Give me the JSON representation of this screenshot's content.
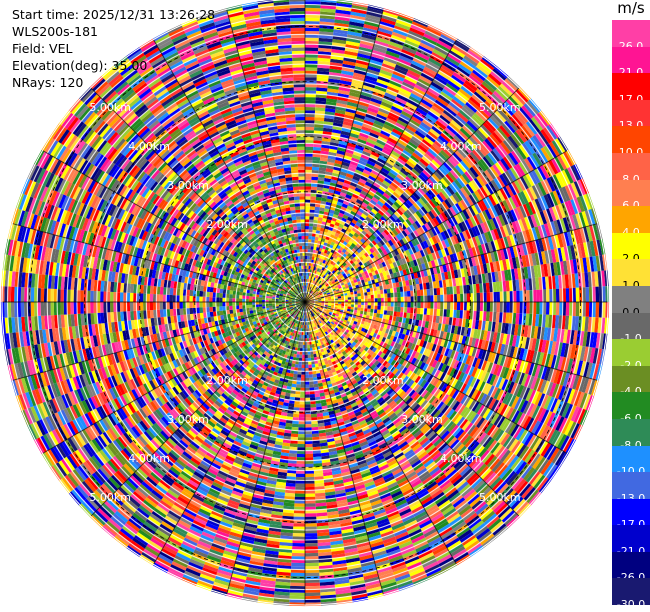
{
  "info": {
    "start_time": "Start time: 2025/12/31 13:26:28",
    "site": "WLS200s-181",
    "field": "Field: VEL",
    "elevation": "Elevation(deg): 35.00",
    "nrays": "NRays: 120"
  },
  "colorbar": {
    "unit": "m/s",
    "levels": [
      {
        "label": "26.0",
        "color": "#ff3fa6"
      },
      {
        "label": "21.0",
        "color": "#ff1493"
      },
      {
        "label": "17.0",
        "color": "#ff0000"
      },
      {
        "label": "13.0",
        "color": "#ff3333"
      },
      {
        "label": "10.0",
        "color": "#ff4500"
      },
      {
        "label": "8.0",
        "color": "#ff6347"
      },
      {
        "label": "6.0",
        "color": "#ff7f50"
      },
      {
        "label": "4.0",
        "color": "#ffa500"
      },
      {
        "label": "2.0",
        "color": "#ffff00"
      },
      {
        "label": "1.0",
        "color": "#ffe135"
      },
      {
        "label": "0.0",
        "color": "#808080"
      },
      {
        "label": "-1.0",
        "color": "#696969"
      },
      {
        "label": "-2.0",
        "color": "#9acd32"
      },
      {
        "label": "-4.0",
        "color": "#6b8e23"
      },
      {
        "label": "-6.0",
        "color": "#228b22"
      },
      {
        "label": "-8.0",
        "color": "#2e8b57"
      },
      {
        "label": "-10.0",
        "color": "#1e90ff"
      },
      {
        "label": "-13.0",
        "color": "#4169e1"
      },
      {
        "label": "-17.0",
        "color": "#0000ff"
      },
      {
        "label": "-21.0",
        "color": "#0000cd"
      },
      {
        "label": "-26.0",
        "color": "#000080"
      },
      {
        "label": "-30.0",
        "color": "#191970"
      }
    ]
  },
  "chart_data": {
    "type": "heatmap",
    "projection": "polar PPI",
    "field": "VEL",
    "elevation_deg": 35.0,
    "n_rays": 120,
    "range_rings_km": [
      2.0,
      3.0,
      4.0,
      5.0
    ],
    "range_ring_labels": [
      "2.00km",
      "3.00km",
      "4.00km",
      "5.00km"
    ],
    "max_range_km": 5.5,
    "near_range_pattern": "positive velocities (yellow/orange) on the east side, negative velocities (green) on the west side within ~1.5 km",
    "far_range_pattern": "noise-dominated, all colors across the scale"
  }
}
